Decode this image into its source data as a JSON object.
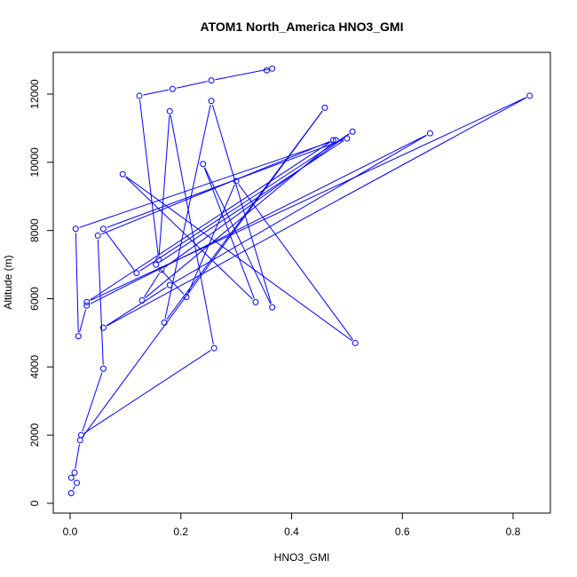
{
  "chart_data": {
    "type": "line",
    "title": "ATOM1 North_America HNO3_GMI",
    "xlabel": "HNO3_GMI",
    "ylabel": "Altitude (m)",
    "xlim": [
      0,
      0.85
    ],
    "ylim": [
      0,
      13000
    ],
    "xticks": [
      0.0,
      0.2,
      0.4,
      0.6,
      0.8
    ],
    "xtick_labels": [
      "0.0",
      "0.2",
      "0.4",
      "0.6",
      "0.8"
    ],
    "yticks": [
      0,
      2000,
      4000,
      6000,
      8000,
      10000,
      12000
    ],
    "ytick_labels": [
      "0",
      "2000",
      "4000",
      "6000",
      "8000",
      "10000",
      "12000"
    ],
    "grid": false,
    "markers": "open-circle",
    "series": [
      {
        "color": "#0000ff",
        "points": [
          [
            0.002,
            300
          ],
          [
            0.012,
            600
          ],
          [
            0.002,
            750
          ],
          [
            0.008,
            900
          ],
          [
            0.018,
            1850
          ],
          [
            0.46,
            11600
          ],
          [
            0.17,
            5300
          ],
          [
            0.255,
            11800
          ],
          [
            0.365,
            5750
          ],
          [
            0.24,
            9950
          ],
          [
            0.335,
            5900
          ],
          [
            0.095,
            9650
          ],
          [
            0.515,
            4700
          ],
          [
            0.3,
            9450
          ],
          [
            0.21,
            6050
          ],
          [
            0.155,
            7000
          ],
          [
            0.5,
            10700
          ],
          [
            0.06,
            8050
          ],
          [
            0.12,
            6750
          ],
          [
            0.51,
            10900
          ],
          [
            0.165,
            6850
          ],
          [
            0.13,
            5950
          ],
          [
            0.48,
            10650
          ],
          [
            0.01,
            8050
          ],
          [
            0.015,
            4900
          ],
          [
            0.03,
            5800
          ],
          [
            0.65,
            10850
          ],
          [
            0.18,
            6400
          ],
          [
            0.06,
            5150
          ],
          [
            0.83,
            11950
          ],
          [
            0.03,
            5900
          ],
          [
            0.475,
            10650
          ],
          [
            0.05,
            7850
          ],
          [
            0.06,
            3950
          ],
          [
            0.02,
            2000
          ],
          [
            0.26,
            4550
          ],
          [
            0.18,
            11500
          ],
          [
            0.16,
            7150
          ],
          [
            0.125,
            11950
          ],
          [
            0.185,
            12150
          ],
          [
            0.255,
            12400
          ],
          [
            0.365,
            12750
          ],
          [
            0.355,
            12700
          ]
        ]
      }
    ]
  }
}
